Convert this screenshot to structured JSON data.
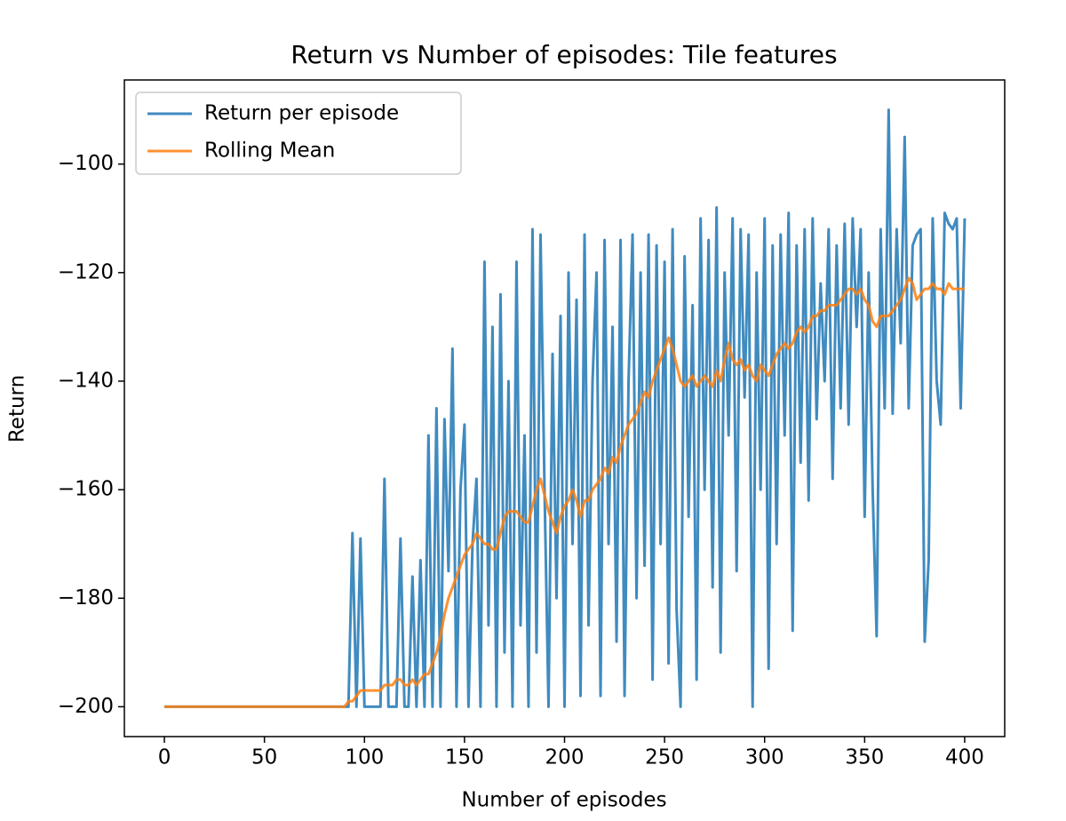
{
  "chart_data": {
    "type": "line",
    "title": "Return vs Number of episodes: Tile features",
    "xlabel": "Number of episodes",
    "ylabel": "Return",
    "x": [
      0,
      2,
      4,
      6,
      8,
      10,
      12,
      14,
      16,
      18,
      20,
      22,
      24,
      26,
      28,
      30,
      32,
      34,
      36,
      38,
      40,
      42,
      44,
      46,
      48,
      50,
      52,
      54,
      56,
      58,
      60,
      62,
      64,
      66,
      68,
      70,
      72,
      74,
      76,
      78,
      80,
      82,
      84,
      86,
      88,
      90,
      92,
      94,
      96,
      98,
      100,
      102,
      104,
      106,
      108,
      110,
      112,
      114,
      116,
      118,
      120,
      122,
      124,
      126,
      128,
      130,
      132,
      134,
      136,
      138,
      140,
      142,
      144,
      146,
      148,
      150,
      152,
      154,
      156,
      158,
      160,
      162,
      164,
      166,
      168,
      170,
      172,
      174,
      176,
      178,
      180,
      182,
      184,
      186,
      188,
      190,
      192,
      194,
      196,
      198,
      200,
      202,
      204,
      206,
      208,
      210,
      212,
      214,
      216,
      218,
      220,
      222,
      224,
      226,
      228,
      230,
      232,
      234,
      236,
      238,
      240,
      242,
      244,
      246,
      248,
      250,
      252,
      254,
      256,
      258,
      260,
      262,
      264,
      266,
      268,
      270,
      272,
      274,
      276,
      278,
      280,
      282,
      284,
      286,
      288,
      290,
      292,
      294,
      296,
      298,
      300,
      302,
      304,
      306,
      308,
      310,
      312,
      314,
      316,
      318,
      320,
      322,
      324,
      326,
      328,
      330,
      332,
      334,
      336,
      338,
      340,
      342,
      344,
      346,
      348,
      350,
      352,
      354,
      356,
      358,
      360,
      362,
      364,
      366,
      368,
      370,
      372,
      374,
      376,
      378,
      380,
      382,
      384,
      386,
      388,
      390,
      392,
      394,
      396,
      398,
      400
    ],
    "series": [
      {
        "name": "Return per episode",
        "color": "#1f77b4",
        "values": [
          -200,
          -200,
          -200,
          -200,
          -200,
          -200,
          -200,
          -200,
          -200,
          -200,
          -200,
          -200,
          -200,
          -200,
          -200,
          -200,
          -200,
          -200,
          -200,
          -200,
          -200,
          -200,
          -200,
          -200,
          -200,
          -200,
          -200,
          -200,
          -200,
          -200,
          -200,
          -200,
          -200,
          -200,
          -200,
          -200,
          -200,
          -200,
          -200,
          -200,
          -200,
          -200,
          -200,
          -200,
          -200,
          -200,
          -200,
          -168,
          -200,
          -169,
          -200,
          -200,
          -200,
          -200,
          -200,
          -158,
          -200,
          -200,
          -200,
          -169,
          -200,
          -200,
          -176,
          -200,
          -173,
          -200,
          -150,
          -200,
          -145,
          -200,
          -147,
          -175,
          -134,
          -200,
          -160,
          -148,
          -200,
          -170,
          -158,
          -200,
          -118,
          -185,
          -130,
          -200,
          -124,
          -190,
          -140,
          -200,
          -118,
          -185,
          -150,
          -200,
          -112,
          -190,
          -113,
          -160,
          -200,
          -135,
          -180,
          -128,
          -200,
          -120,
          -170,
          -125,
          -198,
          -113,
          -185,
          -140,
          -120,
          -198,
          -114,
          -170,
          -130,
          -188,
          -114,
          -198,
          -140,
          -113,
          -180,
          -120,
          -174,
          -113,
          -195,
          -115,
          -170,
          -118,
          -192,
          -112,
          -182,
          -200,
          -117,
          -165,
          -126,
          -195,
          -110,
          -160,
          -114,
          -178,
          -108,
          -190,
          -120,
          -150,
          -110,
          -175,
          -112,
          -143,
          -113,
          -200,
          -120,
          -160,
          -110,
          -193,
          -115,
          -170,
          -113,
          -150,
          -109,
          -186,
          -115,
          -155,
          -112,
          -162,
          -110,
          -147,
          -122,
          -140,
          -112,
          -158,
          -115,
          -145,
          -111,
          -148,
          -110,
          -130,
          -112,
          -165,
          -120,
          -160,
          -187,
          -112,
          -145,
          -90,
          -146,
          -112,
          -133,
          -95,
          -145,
          -115,
          -113,
          -112,
          -188,
          -173,
          -110,
          -140,
          -148,
          -109,
          -111,
          -112,
          -110,
          -145,
          -110
        ]
      },
      {
        "name": "Rolling Mean",
        "color": "#ff7f0e",
        "values": [
          -200,
          -200,
          -200,
          -200,
          -200,
          -200,
          -200,
          -200,
          -200,
          -200,
          -200,
          -200,
          -200,
          -200,
          -200,
          -200,
          -200,
          -200,
          -200,
          -200,
          -200,
          -200,
          -200,
          -200,
          -200,
          -200,
          -200,
          -200,
          -200,
          -200,
          -200,
          -200,
          -200,
          -200,
          -200,
          -200,
          -200,
          -200,
          -200,
          -200,
          -200,
          -200,
          -200,
          -200,
          -200,
          -200,
          -199,
          -199,
          -198,
          -197,
          -197,
          -197,
          -197,
          -197,
          -197,
          -196,
          -196,
          -196,
          -195,
          -195,
          -196,
          -196,
          -195,
          -196,
          -195,
          -194,
          -194,
          -192,
          -190,
          -187,
          -183,
          -180,
          -178,
          -176,
          -174,
          -172,
          -171,
          -170,
          -168,
          -169,
          -170,
          -170,
          -171,
          -171,
          -168,
          -165,
          -164,
          -164,
          -164,
          -165,
          -166,
          -166,
          -163,
          -160,
          -158,
          -161,
          -164,
          -166,
          -168,
          -165,
          -163,
          -162,
          -160,
          -162,
          -165,
          -162,
          -162,
          -160,
          -159,
          -158,
          -156,
          -157,
          -154,
          -155,
          -152,
          -150,
          -148,
          -147,
          -146,
          -144,
          -142,
          -143,
          -140,
          -138,
          -136,
          -134,
          -132,
          -134,
          -137,
          -140,
          -141,
          -140,
          -139,
          -141,
          -140,
          -139,
          -140,
          -141,
          -138,
          -140,
          -136,
          -133,
          -136,
          -137,
          -136,
          -138,
          -137,
          -139,
          -140,
          -137,
          -138,
          -139,
          -137,
          -135,
          -134,
          -133,
          -134,
          -133,
          -131,
          -130,
          -131,
          -130,
          -128,
          -128,
          -127,
          -127,
          -126,
          -126,
          -126,
          -125,
          -124,
          -123,
          -123,
          -124,
          -123,
          -125,
          -126,
          -129,
          -130,
          -128,
          -128,
          -128,
          -127,
          -126,
          -125,
          -123,
          -121,
          -122,
          -125,
          -124,
          -123,
          -123,
          -122,
          -123,
          -123,
          -124,
          -122,
          -123,
          -123,
          -123,
          -123
        ]
      }
    ],
    "xlim": [
      -20,
      420
    ],
    "xticks": [
      0,
      50,
      100,
      150,
      200,
      250,
      300,
      350,
      400
    ],
    "ylim": [
      -205.5,
      -84.5
    ],
    "yticks": [
      {
        "value": -200,
        "label": "−200"
      },
      {
        "value": -180,
        "label": "−180"
      },
      {
        "value": -160,
        "label": "−160"
      },
      {
        "value": -140,
        "label": "−140"
      },
      {
        "value": -120,
        "label": "−120"
      },
      {
        "value": -100,
        "label": "−100"
      }
    ],
    "grid": false,
    "legend": "upper left"
  }
}
